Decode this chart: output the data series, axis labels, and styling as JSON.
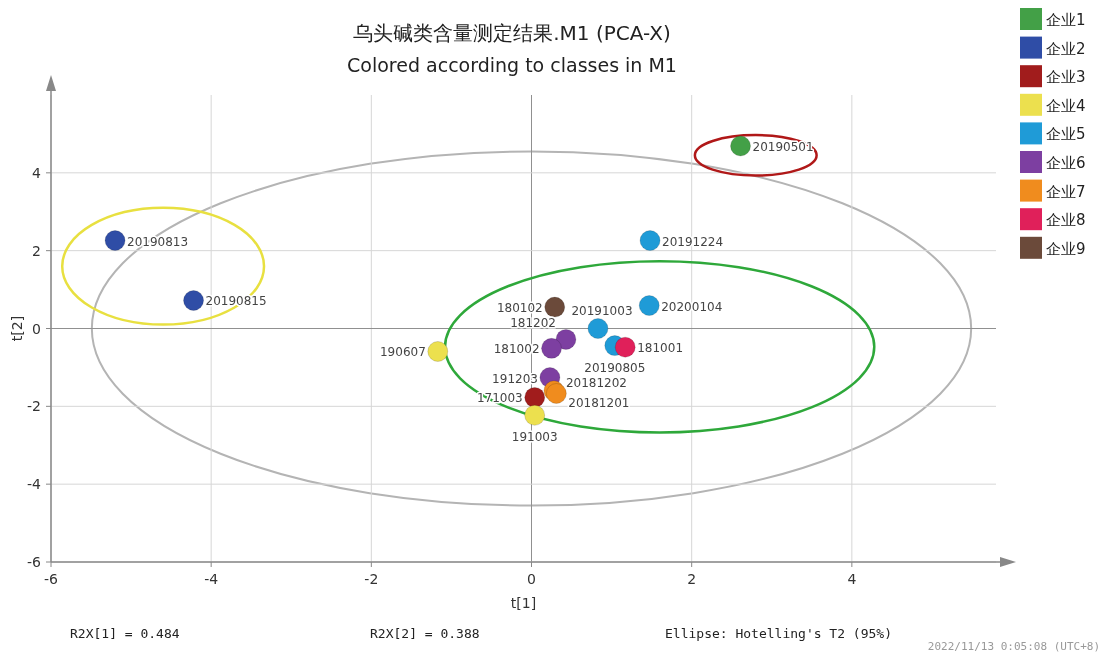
{
  "chart_data": {
    "type": "scatter",
    "title": "乌头碱类含量测定结果.M1 (PCA-X)",
    "subtitle": "Colored according to classes in M1",
    "xlabel": "t[1]",
    "ylabel": "t[2]",
    "xlim": [
      -6,
      5.8
    ],
    "ylim": [
      -6,
      6
    ],
    "xticks": [
      -6,
      -4,
      -2,
      0,
      2,
      4
    ],
    "yticks": [
      -6,
      -4,
      -2,
      0,
      2,
      4
    ],
    "grid": true,
    "legend": "right",
    "marker": "circle",
    "annotations": [
      "R2X[1] = 0.484",
      "R2X[2] = 0.388",
      "Ellipse: Hotelling's T2 (95%)",
      "2022/11/13 0:05:08 (UTC+8)",
      {
        "text": "20190501",
        "x": 2.61,
        "y": 4.69
      },
      {
        "text": "20190813",
        "x": -5.2,
        "y": 2.26
      },
      {
        "text": "20190815",
        "x": -4.22,
        "y": 0.72
      },
      {
        "text": "171003",
        "x": 0.04,
        "y": -1.77
      },
      {
        "text": "190607",
        "x": -1.17,
        "y": -0.59
      },
      {
        "text": "191003",
        "x": 0.04,
        "y": -2.23
      },
      {
        "text": "20191224",
        "x": 1.48,
        "y": 2.26
      },
      {
        "text": "20200104",
        "x": 1.47,
        "y": 0.59
      },
      {
        "text": "20191003",
        "x": 0.83,
        "y": 0.0
      },
      {
        "text": "20190805",
        "x": 1.04,
        "y": -0.44
      },
      {
        "text": "181202",
        "x": 0.43,
        "y": -0.28
      },
      {
        "text": "181002",
        "x": 0.25,
        "y": -0.51
      },
      {
        "text": "191203",
        "x": 0.23,
        "y": -1.26
      },
      {
        "text": "20181202",
        "x": 0.28,
        "y": -1.6
      },
      {
        "text": "20181201",
        "x": 0.31,
        "y": -1.67
      },
      {
        "text": "181001",
        "x": 1.17,
        "y": -0.48
      },
      {
        "text": "180102",
        "x": 0.29,
        "y": 0.55
      }
    ],
    "series": [
      {
        "name": "企业1",
        "color": "#43a047",
        "x": [
          2.61
        ],
        "values": [
          4.69
        ]
      },
      {
        "name": "企业2",
        "color": "#2f4da6",
        "x": [
          -5.2,
          -4.22
        ],
        "values": [
          2.26,
          0.72
        ]
      },
      {
        "name": "企业3",
        "color": "#a11c1c",
        "x": [
          0.04
        ],
        "values": [
          -1.77
        ]
      },
      {
        "name": "企业4",
        "color": "#ece04e",
        "x": [
          -1.17,
          0.04
        ],
        "values": [
          -0.59,
          -2.23
        ]
      },
      {
        "name": "企业5",
        "color": "#1f9bd7",
        "x": [
          1.48,
          1.47,
          0.83,
          1.04
        ],
        "values": [
          2.26,
          0.59,
          0.0,
          -0.44
        ]
      },
      {
        "name": "企业6",
        "color": "#7d3fa1",
        "x": [
          0.43,
          0.25,
          0.23
        ],
        "values": [
          -0.28,
          -0.51,
          -1.26
        ]
      },
      {
        "name": "企业7",
        "color": "#f08c1e",
        "x": [
          0.28,
          0.31
        ],
        "values": [
          -1.6,
          -1.67
        ]
      },
      {
        "name": "企业8",
        "color": "#e0205a",
        "x": [
          1.17
        ],
        "values": [
          -0.48
        ]
      },
      {
        "name": "企业9",
        "color": "#6b4a3a",
        "x": [
          0.29
        ],
        "values": [
          0.55
        ]
      }
    ]
  }
}
